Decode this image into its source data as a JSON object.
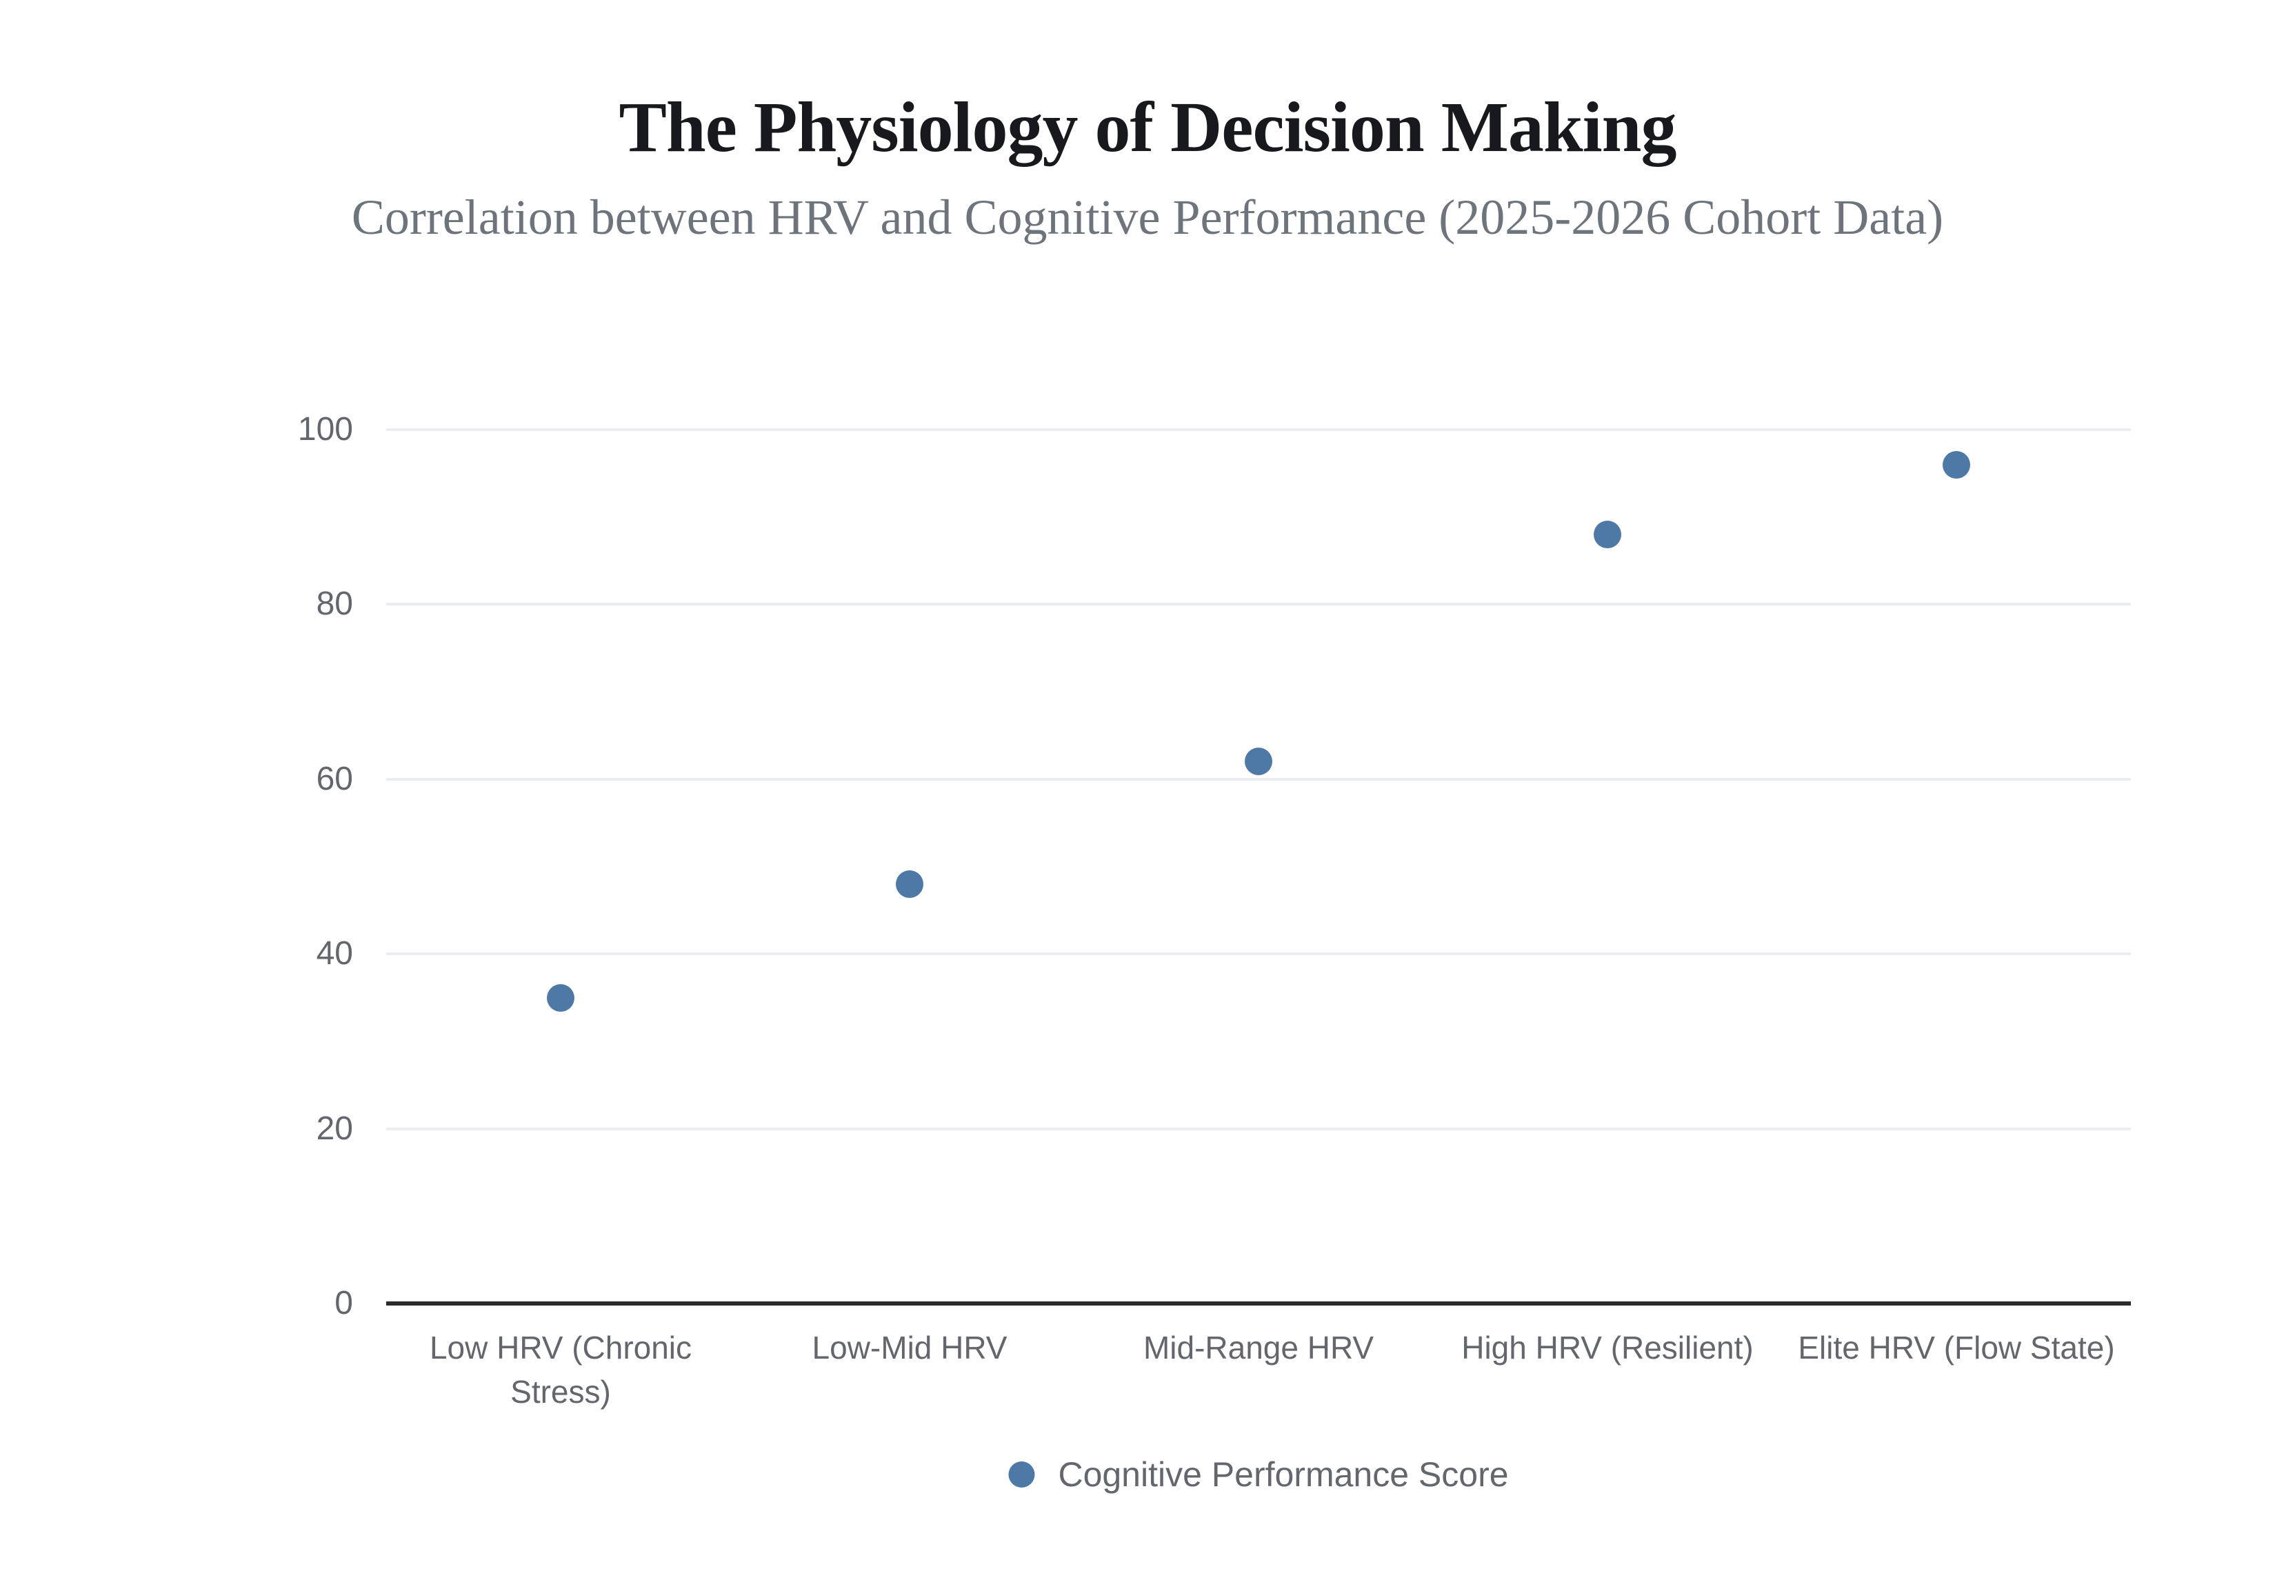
{
  "header": {
    "title": "The Physiology of Decision Making",
    "subtitle": "Correlation between HRV and Cognitive Performance (2025-2026 Cohort Data)"
  },
  "chart_data": {
    "type": "scatter",
    "title": "The Physiology of Decision Making",
    "subtitle": "Correlation between HRV and Cognitive Performance (2025-2026 Cohort Data)",
    "categories": [
      "Low HRV (Chronic Stress)",
      "Low-Mid HRV",
      "Mid-Range HRV",
      "High HRV (Resilient)",
      "Elite HRV (Flow State)"
    ],
    "series": [
      {
        "name": "Cognitive Performance Score",
        "values": [
          35,
          48,
          62,
          88,
          96
        ]
      }
    ],
    "xlabel": "",
    "ylabel": "",
    "ylim": [
      0,
      100
    ],
    "yticks": [
      0,
      20,
      40,
      60,
      80,
      100
    ],
    "grid": "horizontal-only",
    "legend_position": "bottom-center"
  },
  "legend": {
    "label": "Cognitive Performance Score"
  },
  "colors": {
    "background": "#ffffff",
    "title": "#17191d",
    "subtitle": "#6e747c",
    "axis_label": "#63676d",
    "gridline": "#ebedf0",
    "axis_line": "#2b2b2b",
    "marker": "#4e79a7"
  }
}
